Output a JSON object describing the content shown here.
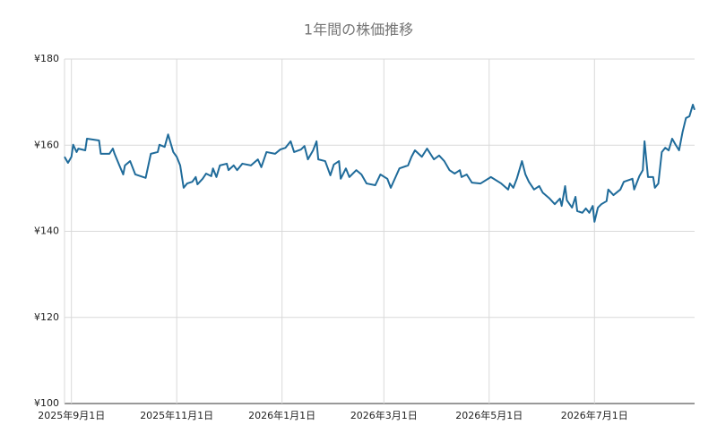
{
  "chart_data": {
    "type": "line",
    "title": "1年間の株価推移",
    "color": "#1f6b9a",
    "grid": true,
    "xlim": [
      "2025-08-28",
      "2026-08-28"
    ],
    "xticks": [
      {
        "value": "2025-09-01",
        "label": "2025年9月1日"
      },
      {
        "value": "2025-11-01",
        "label": "2025年11月1日"
      },
      {
        "value": "2026-01-01",
        "label": "2026年1月1日"
      },
      {
        "value": "2026-03-01",
        "label": "2026年3月1日"
      },
      {
        "value": "2026-05-01",
        "label": "2026年5月1日"
      },
      {
        "value": "2026-07-01",
        "label": "2026年7月1日"
      }
    ],
    "ylim": [
      100,
      180
    ],
    "yticks": [
      {
        "value": 100,
        "label": "¥100"
      },
      {
        "value": 120,
        "label": "¥120"
      },
      {
        "value": 140,
        "label": "¥140"
      },
      {
        "value": 160,
        "label": "¥160"
      },
      {
        "value": 180,
        "label": "¥180"
      }
    ],
    "x": [
      "2025-08-28",
      "2025-08-30",
      "2025-09-01",
      "2025-09-02",
      "2025-09-04",
      "2025-09-05",
      "2025-09-09",
      "2025-09-10",
      "2025-09-17",
      "2025-09-18",
      "2025-09-23",
      "2025-09-25",
      "2025-09-26",
      "2025-09-29",
      "2025-10-01",
      "2025-10-02",
      "2025-10-05",
      "2025-10-08",
      "2025-10-14",
      "2025-10-17",
      "2025-10-21",
      "2025-10-22",
      "2025-10-25",
      "2025-10-27",
      "2025-10-30",
      "2025-11-01",
      "2025-11-03",
      "2025-11-05",
      "2025-11-07",
      "2025-11-10",
      "2025-11-12",
      "2025-11-13",
      "2025-11-16",
      "2025-11-18",
      "2025-11-21",
      "2025-11-22",
      "2025-11-24",
      "2025-11-26",
      "2025-11-30",
      "2025-12-01",
      "2025-12-04",
      "2025-12-06",
      "2025-12-09",
      "2025-12-14",
      "2025-12-18",
      "2025-12-20",
      "2025-12-23",
      "2025-12-28",
      "2025-12-31",
      "2026-01-03",
      "2026-01-06",
      "2026-01-08",
      "2026-01-12",
      "2026-01-14",
      "2026-01-16",
      "2026-01-19",
      "2026-01-21",
      "2026-01-22",
      "2026-01-26",
      "2026-01-29",
      "2026-01-31",
      "2026-02-03",
      "2026-02-04",
      "2026-02-07",
      "2026-02-09",
      "2026-02-13",
      "2026-02-16",
      "2026-02-19",
      "2026-02-24",
      "2026-02-27",
      "2026-03-03",
      "2026-03-05",
      "2026-03-10",
      "2026-03-15",
      "2026-03-17",
      "2026-03-19",
      "2026-03-23",
      "2026-03-26",
      "2026-03-30",
      "2026-04-02",
      "2026-04-05",
      "2026-04-08",
      "2026-04-11",
      "2026-04-14",
      "2026-04-15",
      "2026-04-18",
      "2026-04-21",
      "2026-04-26",
      "2026-05-02",
      "2026-05-08",
      "2026-05-12",
      "2026-05-13",
      "2026-05-15",
      "2026-05-17",
      "2026-05-20",
      "2026-05-22",
      "2026-05-24",
      "2026-05-27",
      "2026-05-30",
      "2026-06-01",
      "2026-06-05",
      "2026-06-08",
      "2026-06-11",
      "2026-06-12",
      "2026-06-14",
      "2026-06-15",
      "2026-06-18",
      "2026-06-20",
      "2026-06-21",
      "2026-06-24",
      "2026-06-26",
      "2026-06-28",
      "2026-06-30",
      "2026-07-01",
      "2026-07-03",
      "2026-07-05",
      "2026-07-08",
      "2026-07-09",
      "2026-07-12",
      "2026-07-16",
      "2026-07-18",
      "2026-07-23",
      "2026-07-24",
      "2026-07-27",
      "2026-07-29",
      "2026-07-30",
      "2026-08-01",
      "2026-08-04",
      "2026-08-05",
      "2026-08-07",
      "2026-08-09",
      "2026-08-11",
      "2026-08-13",
      "2026-08-15",
      "2026-08-17",
      "2026-08-19",
      "2026-08-21",
      "2026-08-23",
      "2026-08-25",
      "2026-08-27",
      "2026-08-28"
    ],
    "values": [
      157.3,
      155.9,
      157.3,
      160.1,
      158.4,
      159.2,
      158.8,
      161.5,
      161.1,
      158.0,
      158.0,
      159.2,
      158.0,
      155.1,
      153.2,
      155.3,
      156.3,
      153.2,
      152.4,
      158.0,
      158.4,
      160.1,
      159.6,
      162.5,
      158.4,
      157.3,
      155.3,
      150.1,
      151.1,
      151.5,
      152.6,
      150.9,
      152.2,
      153.4,
      152.8,
      154.6,
      152.6,
      155.3,
      155.7,
      154.2,
      155.3,
      154.2,
      155.7,
      155.3,
      156.7,
      154.9,
      158.4,
      158.0,
      159.0,
      159.4,
      160.9,
      158.4,
      159.0,
      159.8,
      156.7,
      158.8,
      160.9,
      156.7,
      156.3,
      153.0,
      155.5,
      156.3,
      152.2,
      154.6,
      152.6,
      154.2,
      153.2,
      151.1,
      150.7,
      153.2,
      152.2,
      150.1,
      154.6,
      155.3,
      157.3,
      158.8,
      157.3,
      159.2,
      156.7,
      157.6,
      156.3,
      154.2,
      153.4,
      154.2,
      152.6,
      153.2,
      151.3,
      151.1,
      152.6,
      151.1,
      149.7,
      151.1,
      150.1,
      152.2,
      156.3,
      153.2,
      151.5,
      149.7,
      150.5,
      149.0,
      147.6,
      146.3,
      147.6,
      145.9,
      150.5,
      147.2,
      145.5,
      148.0,
      144.7,
      144.3,
      145.3,
      144.3,
      145.9,
      142.2,
      145.5,
      146.3,
      147.0,
      149.7,
      148.4,
      149.7,
      151.5,
      152.2,
      149.7,
      152.8,
      154.2,
      160.9,
      152.6,
      152.6,
      150.1,
      151.1,
      158.4,
      159.4,
      158.8,
      161.5,
      160.1,
      158.8,
      163.0,
      166.3,
      166.7,
      169.4,
      168.2
    ]
  }
}
